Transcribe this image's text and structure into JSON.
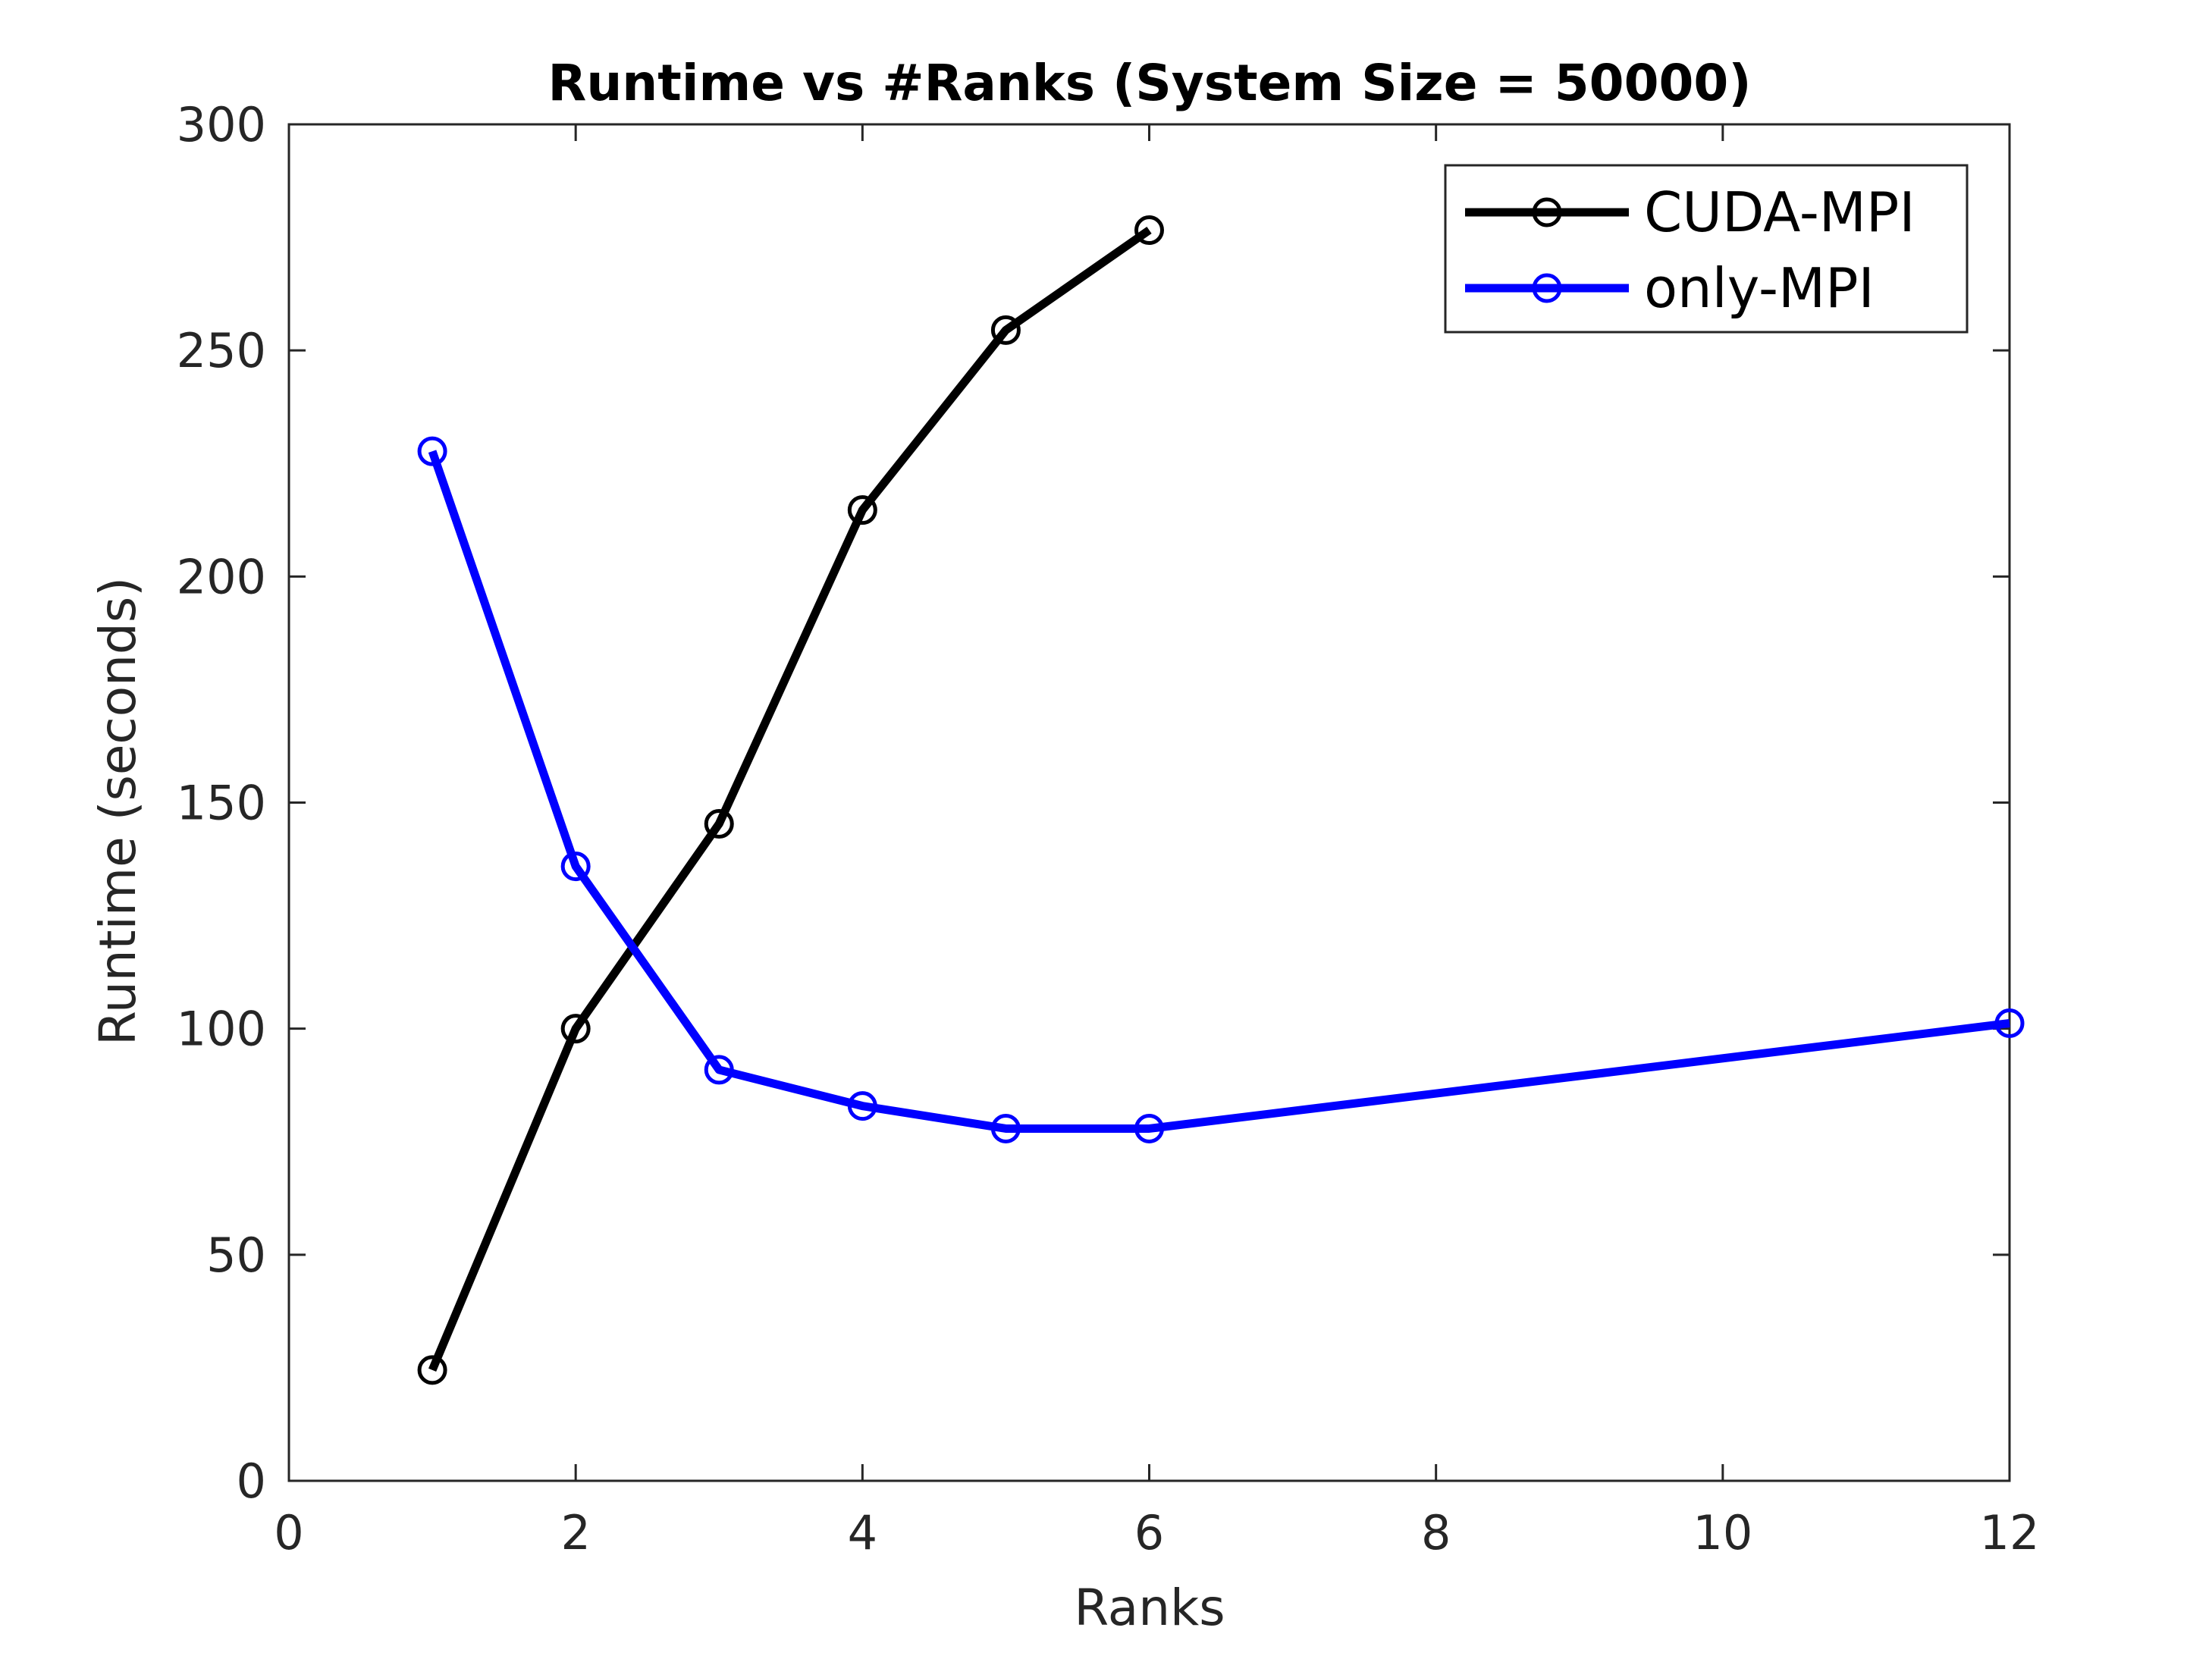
{
  "chart_data": {
    "type": "line",
    "title": "Runtime vs #Ranks (System Size = 50000)",
    "xlabel": "Ranks",
    "ylabel": "Runtime (seconds)",
    "xlim": [
      0,
      12
    ],
    "ylim": [
      0,
      300
    ],
    "xticks": [
      0,
      2,
      4,
      6,
      8,
      10,
      12
    ],
    "yticks": [
      0,
      50,
      100,
      150,
      200,
      250,
      300
    ],
    "grid": false,
    "legend_position": "top-right",
    "series": [
      {
        "name": "CUDA-MPI",
        "color": "#000000",
        "marker": "circle",
        "x": [
          1,
          2,
          3,
          4,
          5,
          6
        ],
        "y": [
          24.5,
          100,
          145.3,
          214.7,
          254.5,
          276.6
        ]
      },
      {
        "name": "only-MPI",
        "color": "#0000ff",
        "marker": "circle",
        "x": [
          1,
          2,
          3,
          4,
          5,
          6,
          12
        ],
        "y": [
          227.7,
          135.9,
          90.9,
          82.9,
          77.9,
          77.9,
          101.2
        ]
      }
    ]
  }
}
